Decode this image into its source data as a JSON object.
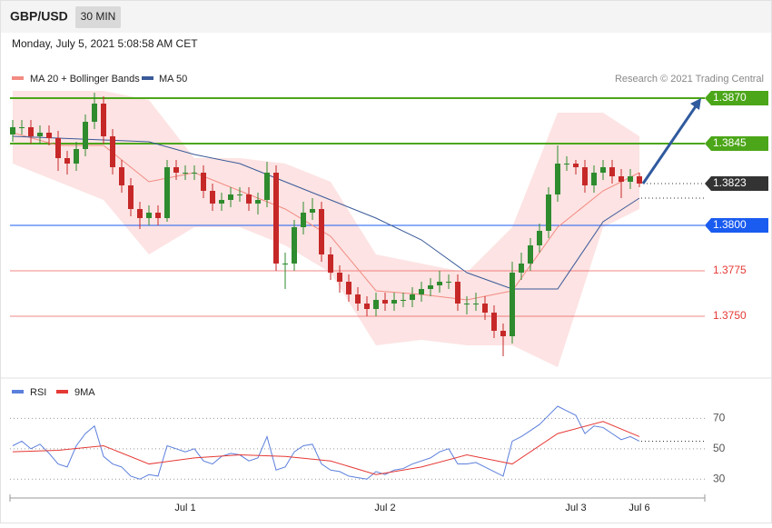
{
  "header": {
    "symbol": "GBP/USD",
    "timeframe": "30 MIN",
    "timestamp": "Monday, July 5, 2021 5:08:58 AM CET"
  },
  "chart_data": [
    {
      "type": "candlestick",
      "credit": "Research © 2021 Trading Central",
      "categories": [
        null,
        null,
        null,
        null,
        null,
        null,
        null,
        null,
        null,
        null,
        null,
        null,
        null,
        null,
        null,
        null,
        null,
        null,
        null,
        "Jul 1",
        null,
        null,
        null,
        null,
        null,
        null,
        null,
        null,
        null,
        null,
        null,
        null,
        null,
        null,
        null,
        null,
        null,
        null,
        null,
        null,
        null,
        "Jul 2",
        null,
        null,
        null,
        null,
        null,
        null,
        null,
        null,
        null,
        null,
        null,
        null,
        null,
        null,
        null,
        null,
        null,
        null,
        null,
        null,
        "Jul 3",
        null,
        null,
        null,
        null,
        null,
        null,
        "Jul 6"
      ],
      "open": [
        1.385,
        1.3854,
        1.3854,
        1.3849,
        1.3851,
        1.3848,
        1.3837,
        1.3834,
        1.3842,
        1.3857,
        1.3867,
        1.3849,
        1.3832,
        1.3822,
        1.3809,
        1.3804,
        1.3807,
        1.3804,
        1.3832,
        1.3829,
        1.3829,
        1.3829,
        1.3819,
        1.3812,
        1.3814,
        1.3817,
        1.3817,
        1.3812,
        1.3814,
        1.3829,
        1.3779,
        1.3779,
        1.3799,
        1.3807,
        1.3809,
        1.3784,
        1.3774,
        1.3769,
        1.3762,
        1.3757,
        1.3754,
        1.3759,
        1.3757,
        1.3759,
        1.3759,
        1.3762,
        1.3765,
        1.3767,
        1.3769,
        1.3769,
        1.3757,
        1.3757,
        1.3757,
        1.3752,
        1.3742,
        1.3739,
        1.3774,
        1.3779,
        1.3789,
        1.3797,
        1.3817,
        1.3834,
        1.3834,
        1.3832,
        1.3822,
        1.3829,
        1.3832,
        1.3827,
        1.3824,
        1.3827
      ],
      "high": [
        1.3858,
        1.3858,
        1.3858,
        1.3855,
        1.3855,
        1.3852,
        1.3841,
        1.3846,
        1.3861,
        1.3873,
        1.3871,
        1.3853,
        1.3836,
        1.3826,
        1.3813,
        1.3811,
        1.3811,
        1.3836,
        1.3836,
        1.3833,
        1.3833,
        1.3833,
        1.3823,
        1.3818,
        1.3821,
        1.3821,
        1.3821,
        1.3818,
        1.3835,
        1.3833,
        1.3785,
        1.3803,
        1.3813,
        1.3815,
        1.3813,
        1.3788,
        1.3778,
        1.3773,
        1.3766,
        1.3761,
        1.3763,
        1.3763,
        1.3763,
        1.3763,
        1.3766,
        1.3769,
        1.3771,
        1.3775,
        1.3773,
        1.3773,
        1.3761,
        1.3763,
        1.3761,
        1.3756,
        1.3746,
        1.378,
        1.3785,
        1.3793,
        1.3801,
        1.3821,
        1.3844,
        1.3838,
        1.3836,
        1.3836,
        1.3833,
        1.3836,
        1.3836,
        1.3831,
        1.3831,
        1.3829
      ],
      "low": [
        1.3846,
        1.385,
        1.3845,
        1.3845,
        1.3844,
        1.383,
        1.3828,
        1.383,
        1.3838,
        1.3853,
        1.3845,
        1.3828,
        1.3818,
        1.3805,
        1.3798,
        1.38,
        1.38,
        1.3802,
        1.3825,
        1.3825,
        1.3825,
        1.3815,
        1.3808,
        1.3808,
        1.381,
        1.3813,
        1.3808,
        1.3806,
        1.381,
        1.3775,
        1.3765,
        1.3775,
        1.3795,
        1.3803,
        1.378,
        1.377,
        1.3763,
        1.3758,
        1.3753,
        1.375,
        1.375,
        1.3753,
        1.3753,
        1.3755,
        1.3755,
        1.3758,
        1.3761,
        1.3763,
        1.3765,
        1.3753,
        1.3751,
        1.3753,
        1.3748,
        1.3738,
        1.3728,
        1.3735,
        1.377,
        1.3775,
        1.3785,
        1.3793,
        1.3813,
        1.383,
        1.3828,
        1.3818,
        1.3818,
        1.3825,
        1.3823,
        1.3815,
        1.382,
        1.3821
      ],
      "close": [
        1.3854,
        1.3854,
        1.3849,
        1.3851,
        1.3848,
        1.3837,
        1.3834,
        1.3842,
        1.3857,
        1.3867,
        1.3849,
        1.3832,
        1.3822,
        1.3809,
        1.3804,
        1.3807,
        1.3804,
        1.3832,
        1.3829,
        1.3829,
        1.3829,
        1.3819,
        1.3812,
        1.3814,
        1.3817,
        1.3817,
        1.3812,
        1.3814,
        1.3829,
        1.3779,
        1.3779,
        1.3799,
        1.3807,
        1.3809,
        1.3784,
        1.3774,
        1.3769,
        1.3762,
        1.3757,
        1.3754,
        1.3759,
        1.3757,
        1.3759,
        1.3759,
        1.3762,
        1.3765,
        1.3767,
        1.3769,
        1.3769,
        1.3757,
        1.3757,
        1.3757,
        1.3752,
        1.3742,
        1.3739,
        1.3774,
        1.3779,
        1.3789,
        1.3797,
        1.3817,
        1.3834,
        1.3834,
        1.3832,
        1.3822,
        1.3829,
        1.3832,
        1.3827,
        1.3824,
        1.3827,
        1.3823
      ],
      "up_color": "#2e8b2e",
      "down_color": "#c62828",
      "series": [
        {
          "name": "MA 20 + Bollinger Bands",
          "color": "#f28b82",
          "band_color": "#fde3e3",
          "x": [
            0,
            5,
            10,
            15,
            20,
            25,
            30,
            35,
            40,
            45,
            50,
            55,
            60,
            65,
            69
          ],
          "values": [
            1.3851,
            1.3844,
            1.3844,
            1.3824,
            1.3829,
            1.3819,
            1.3809,
            1.3794,
            1.3764,
            1.3762,
            1.3759,
            1.3764,
            1.3799,
            1.3819,
            1.3829
          ],
          "upper": [
            1.3874,
            1.3874,
            1.3874,
            1.3869,
            1.3837,
            1.3837,
            1.3834,
            1.3824,
            1.3784,
            1.3779,
            1.3774,
            1.3799,
            1.3862,
            1.3862,
            1.3849
          ],
          "lower": [
            1.3834,
            1.3824,
            1.3814,
            1.3784,
            1.3799,
            1.3799,
            1.3789,
            1.3774,
            1.3734,
            1.3737,
            1.3734,
            1.3734,
            1.3722,
            1.3799,
            1.3809
          ]
        },
        {
          "name": "MA 50",
          "color": "#3a5a98",
          "x": [
            0,
            5,
            10,
            15,
            20,
            25,
            30,
            35,
            40,
            45,
            50,
            55,
            60,
            65,
            69
          ],
          "values": [
            1.3849,
            1.3848,
            1.3847,
            1.3846,
            1.3839,
            1.3834,
            1.3824,
            1.3814,
            1.3804,
            1.3792,
            1.3774,
            1.3765,
            1.3765,
            1.3802,
            1.3815
          ]
        }
      ],
      "levels": [
        {
          "value": 1.387,
          "label": "1.3870",
          "color": "#4ca619",
          "line": "solid",
          "box": true
        },
        {
          "value": 1.3845,
          "label": "1.3845",
          "color": "#4ca619",
          "line": "solid",
          "box": true
        },
        {
          "value": 1.3823,
          "label": "1.3823",
          "color": "#333333",
          "line": "dotted",
          "box": true
        },
        {
          "value": 1.38,
          "label": "1.3800",
          "color": "#1a5cf0",
          "line": "solid",
          "box": true
        },
        {
          "value": 1.3775,
          "label": "1.3775",
          "color": "#e53935",
          "line": "solid",
          "box": false
        },
        {
          "value": 1.375,
          "label": "1.3750",
          "color": "#e53935",
          "line": "solid",
          "box": false
        }
      ],
      "ylim": [
        1.372,
        1.3876
      ]
    },
    {
      "type": "line",
      "ylim": [
        17,
        84
      ],
      "yticks": [
        30,
        50,
        70
      ],
      "series": [
        {
          "name": "RSI",
          "color": "#5b7fdc",
          "values": [
            52,
            55,
            50,
            53,
            47,
            40,
            38,
            52,
            60,
            65,
            45,
            40,
            38,
            32,
            30,
            33,
            32,
            52,
            50,
            48,
            50,
            42,
            40,
            45,
            47,
            46,
            42,
            44,
            58,
            36,
            38,
            48,
            52,
            53,
            40,
            36,
            35,
            32,
            31,
            30,
            35,
            33,
            36,
            37,
            40,
            42,
            44,
            48,
            50,
            40,
            40,
            41,
            38,
            35,
            32,
            55,
            58,
            62,
            66,
            72,
            78,
            75,
            72,
            60,
            65,
            64,
            60,
            56,
            58,
            55
          ]
        },
        {
          "name": "9MA",
          "color": "#e53935",
          "x": [
            0,
            5,
            10,
            15,
            20,
            25,
            30,
            35,
            40,
            45,
            50,
            55,
            60,
            65,
            69
          ],
          "values": [
            48,
            49,
            52,
            40,
            44,
            46,
            45,
            42,
            33,
            38,
            46,
            40,
            60,
            68,
            58
          ]
        }
      ]
    }
  ]
}
